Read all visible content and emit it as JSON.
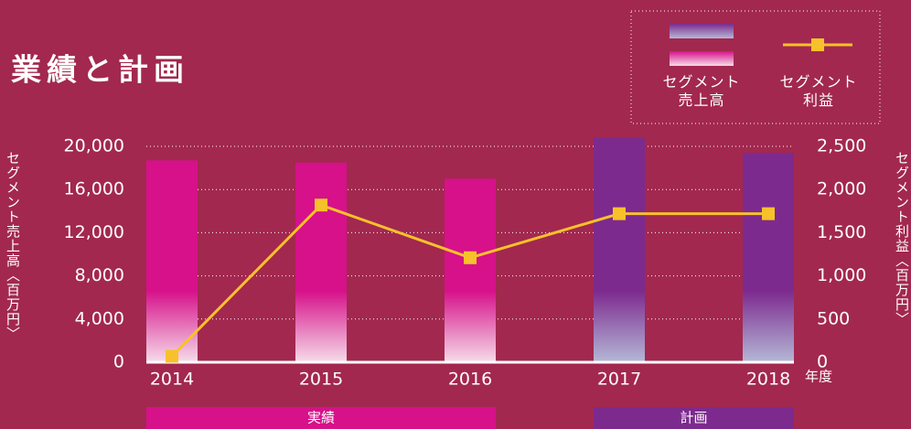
{
  "chart_data": {
    "type": "bar-line",
    "title": "業績と計画",
    "categories": [
      "2014",
      "2015",
      "2016",
      "2017",
      "2018"
    ],
    "x_unit": "年度",
    "series": [
      {
        "name": "セグメント売上高",
        "type": "bar",
        "colors": [
          "#d6118a",
          "#d6118a",
          "#d6118a",
          "#7d2a8f",
          "#7d2a8f"
        ],
        "values": [
          18700,
          18500,
          17000,
          20800,
          19400
        ]
      },
      {
        "name": "セグメント利益",
        "type": "line",
        "axis": "y2",
        "color": "#f7c12b",
        "values": [
          70,
          1820,
          1210,
          1720,
          1720
        ]
      }
    ],
    "ylabel": "セグメント売上高〈百万円〉",
    "y2label": "セグメント利益〈百万円〉",
    "ylim": [
      0,
      20000
    ],
    "yticks": [
      0,
      {
        "value": 4000,
        "label": "4,000"
      },
      {
        "value": 8000,
        "label": "8,000"
      },
      {
        "value": 12000,
        "label": "12,000"
      },
      {
        "value": 16000,
        "label": "16,000"
      },
      {
        "value": 20000,
        "label": "20,000"
      }
    ],
    "y2lim": [
      0,
      2500
    ],
    "y2ticks": [
      0,
      500,
      {
        "value": 1000,
        "label": "1,000"
      },
      {
        "value": 1500,
        "label": "1,500"
      },
      {
        "value": 2000,
        "label": "2,000"
      },
      {
        "value": 2500,
        "label": "2,500"
      }
    ],
    "grid": true,
    "periods": [
      {
        "label": "実績",
        "from": 0,
        "to": 2,
        "color": "#d6118a"
      },
      {
        "label": "計画",
        "from": 3,
        "to": 4,
        "color": "#7d2a8f"
      }
    ]
  }
}
